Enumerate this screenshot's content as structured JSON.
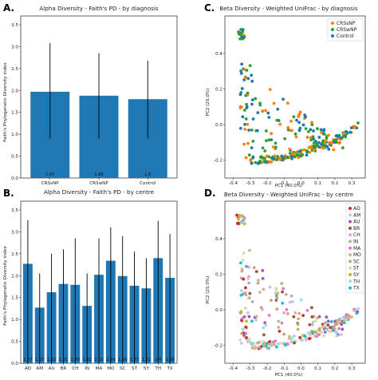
{
  "colors": {
    "bar": "#1f77b4",
    "CRSsNP": "#ff7f0e",
    "CRSwNP": "#2ca02c",
    "Control": "#1f77b4",
    "centres": {
      "AD": "#d62728",
      "AM": "#c9c3e6",
      "AU": "#9b59b6",
      "BR": "#a0522d",
      "CH": "#f0a0c8",
      "IN": "#b0b0b0",
      "MA": "#e377c2",
      "MO": "#d2b48c",
      "SC": "#c7a878",
      "ST": "#dcdc9a",
      "SY": "#bcbd22",
      "TH": "#9ed9e6",
      "TX": "#17becf"
    }
  },
  "chart_data": [
    {
      "id": "A",
      "panel_letter": "A.",
      "type": "bar",
      "title": "Alpha Diversity - Faith's PD - by diagnosis",
      "ylabel": "Faith's Phylogenetic Diversity index",
      "xlabel": "",
      "categories": [
        "CRSsNP",
        "CRSwNP",
        "Control"
      ],
      "values": [
        1.97,
        1.88,
        1.8
      ],
      "value_labels": [
        "1.97",
        "1.88",
        "1.8"
      ],
      "error_low": [
        0.9,
        0.9,
        0.9
      ],
      "error_high": [
        3.08,
        2.85,
        2.68
      ],
      "ylim": [
        0,
        3.7
      ],
      "yticks": [
        "0.0",
        "0.5",
        "1.0",
        "1.5",
        "2.0",
        "2.5",
        "3.0",
        "3.5"
      ]
    },
    {
      "id": "B",
      "panel_letter": "B.",
      "type": "bar",
      "title": "Alpha Diversity - Faith's PD - by centre",
      "ylabel": "Faith's Phylogenetic Diversity index",
      "xlabel": "",
      "categories": [
        "AD",
        "AM",
        "AU",
        "BR",
        "CH",
        "IN",
        "MA",
        "MO",
        "SC",
        "ST",
        "SY",
        "TH",
        "TX"
      ],
      "values": [
        2.27,
        1.27,
        1.62,
        1.81,
        1.79,
        1.31,
        2.02,
        2.34,
        1.99,
        1.77,
        1.71,
        2.4,
        1.95
      ],
      "value_labels": [
        "2.27",
        "1.27",
        "1.62",
        "1.81",
        "1.79",
        "1.31",
        "2.02",
        "2.34",
        "1.99",
        "1.77",
        "1.71",
        "2.4",
        "1.95"
      ],
      "error_low": [
        0.0,
        0.0,
        0.0,
        0.0,
        0.0,
        0.0,
        0.0,
        0.0,
        0.0,
        0.0,
        0.0,
        0.0,
        0.0
      ],
      "error_high": [
        3.27,
        2.05,
        2.5,
        2.6,
        2.85,
        2.05,
        2.85,
        3.1,
        2.9,
        2.55,
        2.4,
        3.25,
        2.95
      ],
      "ylim": [
        0,
        3.7
      ],
      "yticks": [
        "0.0",
        "0.5",
        "1.0",
        "1.5",
        "2.0",
        "2.5",
        "3.0",
        "3.5"
      ]
    },
    {
      "id": "C",
      "panel_letter": "C.",
      "type": "scatter",
      "title": "Beta Diversity - Weighted UniFrac - by diagnosis",
      "xlabel": "PC1 (40.0%)",
      "ylabel": "PC2 (25.0%)",
      "xlim": [
        -0.45,
        0.38
      ],
      "ylim": [
        -0.3,
        0.61
      ],
      "xticks": [
        "-0.4",
        "-0.3",
        "-0.2",
        "-0.1",
        "0.0",
        "0.1",
        "0.2",
        "0.3"
      ],
      "yticks": [
        "-0.2",
        "0.0",
        "0.2",
        "0.4"
      ],
      "legend": [
        "CRSsNP",
        "CRSwNP",
        "Control"
      ],
      "legend_position": "top-right"
    },
    {
      "id": "D",
      "panel_letter": "D.",
      "type": "scatter",
      "title": "Beta Diversity - Weighted UniFrac - by centre",
      "xlabel": "PC1 (40.0%)",
      "ylabel": "PC2 (25.0%)",
      "xlim": [
        -0.45,
        0.38
      ],
      "ylim": [
        -0.3,
        0.61
      ],
      "xticks": [
        "-0.4",
        "-0.3",
        "-0.2",
        "-0.1",
        "0.0",
        "0.1",
        "0.2",
        "0.3"
      ],
      "yticks": [
        "-0.2",
        "0.0",
        "0.2",
        "0.4"
      ],
      "legend": [
        "AD",
        "AM",
        "AU",
        "BR",
        "CH",
        "IN",
        "MA",
        "MO",
        "SC",
        "ST",
        "SY",
        "TH",
        "TX"
      ],
      "legend_position": "top-right"
    }
  ]
}
